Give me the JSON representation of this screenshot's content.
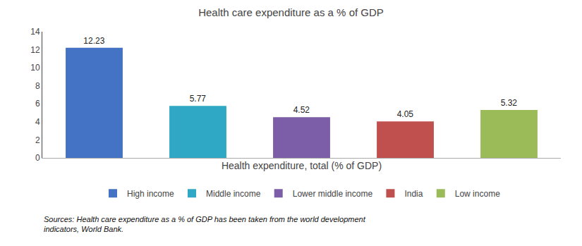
{
  "chart_data": {
    "type": "bar",
    "title": "Health care expenditure as a % of GDP",
    "x_label": "Health expenditure, total (% of GDP)",
    "categories": [
      "High income",
      "Middle income",
      "Lower middle income",
      "India",
      "Low income"
    ],
    "values": [
      12.23,
      5.77,
      4.52,
      4.05,
      5.32
    ],
    "colors": [
      "#4472C4",
      "#2EA8C4",
      "#7B5EA7",
      "#C0504D",
      "#9BBB59"
    ],
    "ylim": [
      0,
      14
    ],
    "yticks": [
      0,
      2,
      4,
      6,
      8,
      10,
      12,
      14
    ],
    "data_labels": true,
    "grid": false,
    "legend": "bottom",
    "tick_labels": "y",
    "annotations": [
      "Sources: Health care expenditure as a % of GDP has been taken from the world development\nindicators, World Bank."
    ]
  }
}
